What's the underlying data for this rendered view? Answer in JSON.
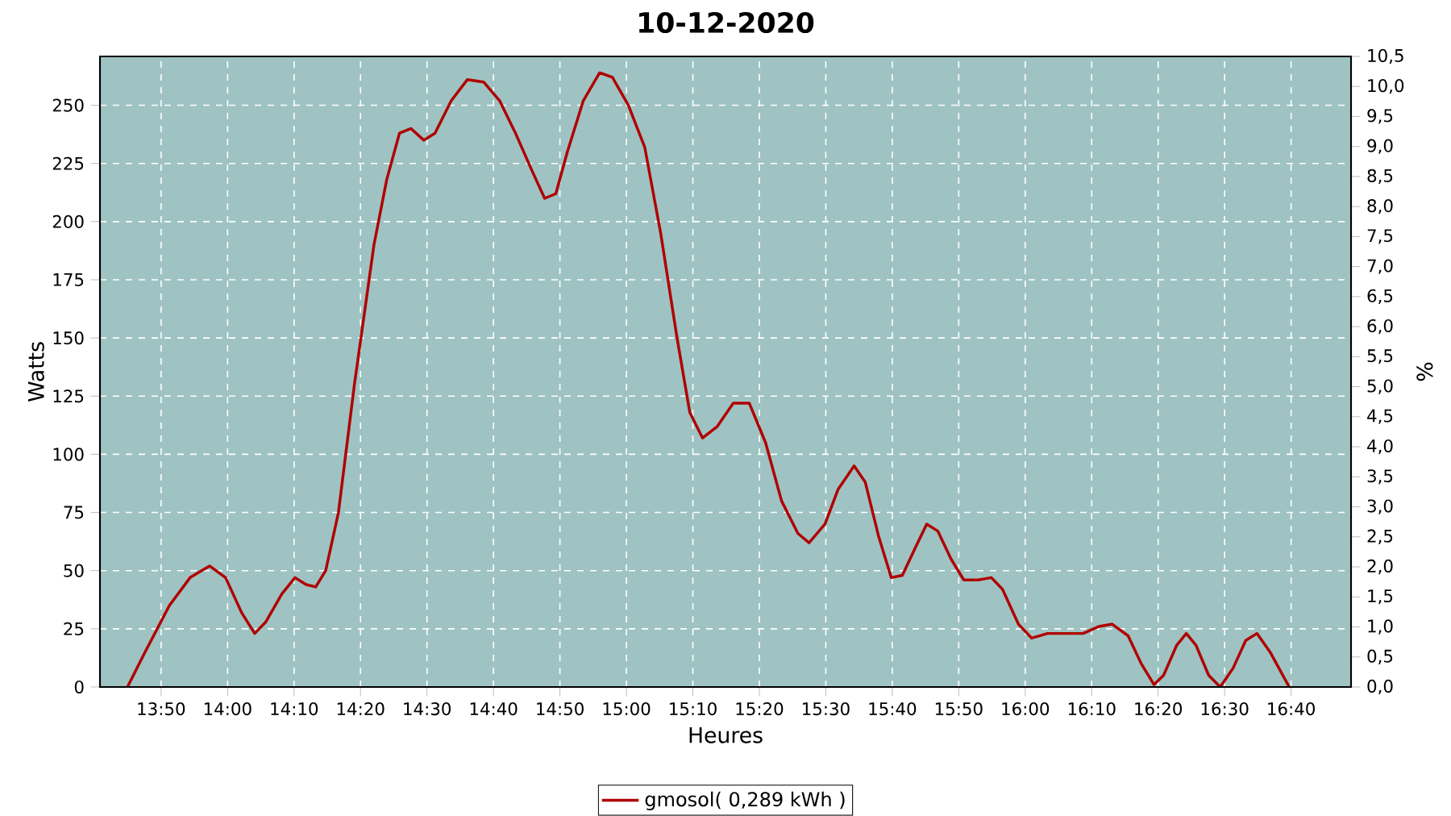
{
  "chart_data": {
    "type": "line",
    "title": "10-12-2020",
    "xlabel": "Heures",
    "ylabel": "Watts",
    "y2label": "%",
    "xlim": [
      13.68,
      16.817
    ],
    "ylim": [
      0,
      271
    ],
    "y2lim": [
      0,
      10.5
    ],
    "xticks": [
      {
        "value": 13.8333,
        "label": "13:50"
      },
      {
        "value": 14.0,
        "label": "14:00"
      },
      {
        "value": 14.1667,
        "label": "14:10"
      },
      {
        "value": 14.3333,
        "label": "14:20"
      },
      {
        "value": 14.5,
        "label": "14:30"
      },
      {
        "value": 14.6667,
        "label": "14:40"
      },
      {
        "value": 14.8333,
        "label": "14:50"
      },
      {
        "value": 15.0,
        "label": "15:00"
      },
      {
        "value": 15.1667,
        "label": "15:10"
      },
      {
        "value": 15.3333,
        "label": "15:20"
      },
      {
        "value": 15.5,
        "label": "15:30"
      },
      {
        "value": 15.6667,
        "label": "15:40"
      },
      {
        "value": 15.8333,
        "label": "15:50"
      },
      {
        "value": 16.0,
        "label": "16:00"
      },
      {
        "value": 16.1667,
        "label": "16:10"
      },
      {
        "value": 16.3333,
        "label": "16:20"
      },
      {
        "value": 16.5,
        "label": "16:30"
      },
      {
        "value": 16.6667,
        "label": "16:40"
      }
    ],
    "yticks": [
      0,
      25,
      50,
      75,
      100,
      125,
      150,
      175,
      200,
      225,
      250
    ],
    "y2ticks": [
      {
        "value": 0,
        "label": "0,0"
      },
      {
        "value": 0.5,
        "label": "0,5"
      },
      {
        "value": 1,
        "label": "1,0"
      },
      {
        "value": 1.5,
        "label": "1,5"
      },
      {
        "value": 2,
        "label": "2,0"
      },
      {
        "value": 2.5,
        "label": "2,5"
      },
      {
        "value": 3,
        "label": "3,0"
      },
      {
        "value": 3.5,
        "label": "3,5"
      },
      {
        "value": 4,
        "label": "4,0"
      },
      {
        "value": 4.5,
        "label": "4,5"
      },
      {
        "value": 5,
        "label": "5,0"
      },
      {
        "value": 5.5,
        "label": "5,5"
      },
      {
        "value": 6,
        "label": "6,0"
      },
      {
        "value": 6.5,
        "label": "6,5"
      },
      {
        "value": 7,
        "label": "7,0"
      },
      {
        "value": 7.5,
        "label": "7,5"
      },
      {
        "value": 8,
        "label": "8,0"
      },
      {
        "value": 8.5,
        "label": "8,5"
      },
      {
        "value": 9,
        "label": "9,0"
      },
      {
        "value": 9.5,
        "label": "9,5"
      },
      {
        "value": 10,
        "label": "10,0"
      },
      {
        "value": 10.5,
        "label": "10,5"
      }
    ],
    "grid": true,
    "legend": "bottom",
    "line_style": "solid",
    "x": [
      13.749,
      13.793,
      13.854,
      13.906,
      13.955,
      13.995,
      14.035,
      14.068,
      14.096,
      14.136,
      14.169,
      14.197,
      14.221,
      14.246,
      14.278,
      14.318,
      14.367,
      14.399,
      14.431,
      14.46,
      14.492,
      14.52,
      14.561,
      14.601,
      14.642,
      14.682,
      14.722,
      14.763,
      14.795,
      14.823,
      14.852,
      14.892,
      14.933,
      14.965,
      15.005,
      15.046,
      15.086,
      15.127,
      15.159,
      15.191,
      15.228,
      15.268,
      15.308,
      15.349,
      15.389,
      15.43,
      15.458,
      15.498,
      15.531,
      15.571,
      15.599,
      15.632,
      15.664,
      15.692,
      15.725,
      15.753,
      15.781,
      15.814,
      15.846,
      15.882,
      15.915,
      15.943,
      15.983,
      16.016,
      16.056,
      16.097,
      16.145,
      16.185,
      16.218,
      16.258,
      16.291,
      16.323,
      16.347,
      16.38,
      16.404,
      16.428,
      16.46,
      16.489,
      16.521,
      16.553,
      16.581,
      16.614,
      16.662
    ],
    "series": [
      {
        "name": "gmosol( 0,289 kWh )",
        "color": "#b00000",
        "values": [
          0,
          15,
          35,
          47,
          52,
          47,
          32,
          23,
          28,
          40,
          47,
          44,
          43,
          50,
          75,
          130,
          190,
          218,
          238,
          240,
          235,
          238,
          252,
          261,
          260,
          252,
          238,
          222,
          210,
          212,
          230,
          252,
          264,
          262,
          250,
          232,
          195,
          150,
          118,
          107,
          112,
          122,
          122,
          105,
          80,
          66,
          62,
          70,
          85,
          95,
          88,
          65,
          47,
          48,
          60,
          70,
          67,
          55,
          46,
          46,
          47,
          42,
          27,
          21,
          23,
          23,
          23,
          26,
          27,
          22,
          10,
          1,
          5,
          18,
          23,
          18,
          5,
          0,
          8,
          20,
          23,
          15,
          0
        ]
      }
    ]
  }
}
